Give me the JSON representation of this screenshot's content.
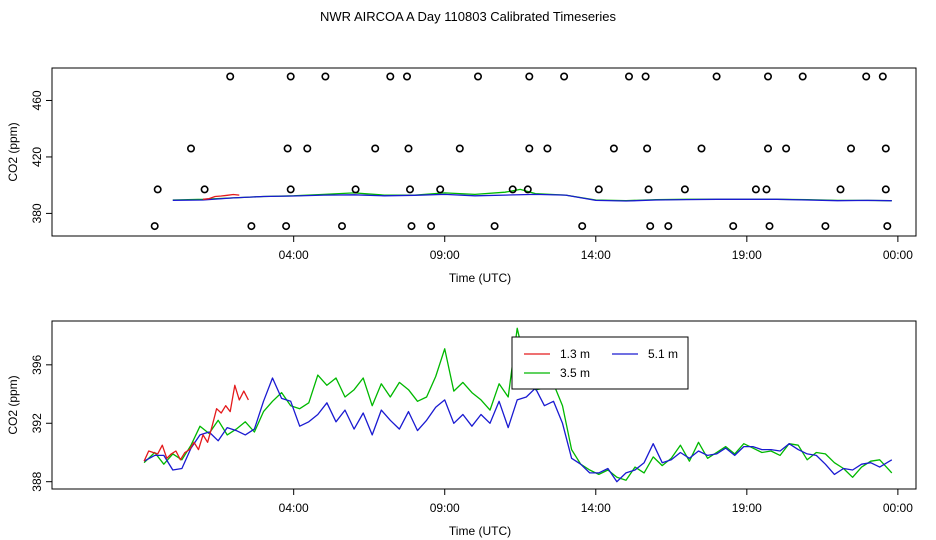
{
  "title": "NWR AIRCOA A  Day 110803  Calibrated Timeseries",
  "chart_data": [
    {
      "type": "scatter",
      "panel": "top",
      "xlabel": "Time (UTC)",
      "ylabel": "CO2 (ppm)",
      "x_unit": "hours since 00:00 UTC",
      "xlim": [
        -4.0,
        24.6
      ],
      "ylim": [
        364,
        483
      ],
      "x_ticks": [
        {
          "value": 4,
          "label": "04:00"
        },
        {
          "value": 9,
          "label": "09:00"
        },
        {
          "value": 14,
          "label": "14:00"
        },
        {
          "value": 19,
          "label": "19:00"
        },
        {
          "value": 24,
          "label": "00:00"
        }
      ],
      "y_ticks": [
        {
          "value": 380,
          "label": "380"
        },
        {
          "value": 420,
          "label": "420"
        },
        {
          "value": 460,
          "label": "460"
        }
      ],
      "legend": "none",
      "calibration_points": {
        "name": "",
        "marker": "open circle",
        "color": "#000000",
        "x": [
          1.9,
          3.9,
          5.05,
          7.2,
          7.75,
          10.1,
          11.8,
          12.95,
          15.1,
          15.65,
          18.0,
          19.7,
          20.85,
          22.95,
          23.5,
          0.6,
          3.8,
          4.45,
          6.7,
          7.8,
          9.5,
          11.8,
          12.4,
          14.6,
          15.7,
          17.5,
          19.7,
          20.3,
          22.45,
          23.6,
          -0.5,
          1.05,
          3.9,
          6.05,
          7.85,
          8.85,
          11.25,
          11.75,
          14.1,
          15.75,
          16.95,
          19.3,
          19.65,
          22.1,
          23.6,
          -0.6,
          2.6,
          3.75,
          5.6,
          7.9,
          8.55,
          10.65,
          13.55,
          15.8,
          16.4,
          18.55,
          19.75,
          21.6,
          23.65
        ],
        "y": [
          477,
          477,
          477,
          477,
          477,
          477,
          477,
          477,
          477,
          477,
          477,
          477,
          477,
          477,
          477,
          426,
          426,
          426,
          426,
          426,
          426,
          426,
          426,
          426,
          426,
          426,
          426,
          426,
          426,
          426,
          397,
          397,
          397,
          397,
          397,
          397,
          397,
          397,
          397,
          397,
          397,
          397,
          397,
          397,
          397,
          371,
          371,
          371,
          371,
          371,
          371,
          371,
          371,
          371,
          371,
          371,
          371,
          371,
          371
        ]
      },
      "series": [
        {
          "name": "1.3 m",
          "color": "#e41a1c",
          "x": [
            1.0,
            1.2,
            1.4,
            1.6,
            1.8,
            2.0,
            2.2
          ],
          "y": [
            390.0,
            390.5,
            392.0,
            392.3,
            392.8,
            393.4,
            393.0
          ]
        },
        {
          "name": "3.5 m",
          "color": "#00b800",
          "x": [
            0.0,
            1.0,
            2.0,
            3.0,
            4.0,
            5.0,
            6.0,
            7.0,
            8.0,
            9.0,
            10.0,
            11.0,
            11.5,
            12.0,
            13.0,
            14.0,
            15.0,
            16.0,
            17.0,
            18.0,
            19.0,
            20.0,
            21.0,
            22.0,
            23.0,
            23.8
          ],
          "y": [
            389.5,
            390.0,
            391.0,
            392.0,
            392.5,
            393.5,
            394.5,
            393.0,
            393.0,
            394.5,
            393.5,
            395.0,
            397.0,
            394.0,
            393.0,
            389.5,
            389.0,
            389.8,
            390.0,
            390.0,
            390.0,
            390.0,
            389.8,
            389.2,
            389.2,
            389.0
          ]
        },
        {
          "name": "5.1 m",
          "color": "#1a1ad1",
          "x": [
            0.0,
            1.0,
            2.0,
            3.0,
            4.0,
            5.0,
            6.0,
            7.0,
            8.0,
            9.0,
            10.0,
            11.0,
            12.0,
            13.0,
            14.0,
            15.0,
            16.0,
            17.0,
            18.0,
            19.0,
            20.0,
            21.0,
            22.0,
            23.0,
            23.8
          ],
          "y": [
            389.3,
            389.5,
            391.0,
            392.0,
            392.3,
            393.0,
            393.2,
            392.5,
            392.8,
            393.5,
            392.5,
            393.0,
            393.5,
            393.0,
            389.2,
            388.8,
            389.5,
            389.8,
            390.0,
            390.0,
            390.0,
            389.5,
            389.0,
            389.2,
            389.0
          ]
        }
      ]
    },
    {
      "type": "line",
      "panel": "bottom",
      "xlabel": "Time (UTC)",
      "ylabel": "CO2 (ppm)",
      "x_unit": "hours since 00:00 UTC",
      "xlim": [
        -4.0,
        24.6
      ],
      "ylim": [
        387.5,
        399.0
      ],
      "x_ticks": [
        {
          "value": 4,
          "label": "04:00"
        },
        {
          "value": 9,
          "label": "09:00"
        },
        {
          "value": 14,
          "label": "14:00"
        },
        {
          "value": 19,
          "label": "19:00"
        },
        {
          "value": 24,
          "label": "00:00"
        }
      ],
      "y_ticks": [
        {
          "value": 388,
          "label": "388"
        },
        {
          "value": 392,
          "label": "392"
        },
        {
          "value": 396,
          "label": "396"
        }
      ],
      "legend": "top-center",
      "series": [
        {
          "name": "1.3 m",
          "color": "#e41a1c",
          "x": [
            -0.95,
            -0.8,
            -0.65,
            -0.5,
            -0.35,
            -0.2,
            -0.05,
            0.1,
            0.25,
            0.4,
            0.55,
            0.7,
            0.85,
            1.0,
            1.15,
            1.3,
            1.45,
            1.6,
            1.75,
            1.9,
            2.05,
            2.2,
            2.35,
            2.5
          ],
          "y": [
            389.4,
            390.1,
            390.0,
            389.9,
            390.5,
            389.6,
            389.9,
            390.1,
            389.5,
            390.0,
            390.2,
            390.7,
            390.2,
            391.2,
            390.7,
            391.8,
            393.0,
            392.7,
            393.2,
            392.8,
            394.6,
            393.6,
            394.2,
            393.6
          ]
        },
        {
          "name": "3.5 m",
          "color": "#00b800",
          "x": [
            -0.95,
            -0.6,
            -0.3,
            0.0,
            0.3,
            0.6,
            0.9,
            1.2,
            1.5,
            1.8,
            2.1,
            2.4,
            2.7,
            3.0,
            3.3,
            3.6,
            3.9,
            4.2,
            4.5,
            4.8,
            5.1,
            5.4,
            5.7,
            6.0,
            6.3,
            6.6,
            6.9,
            7.2,
            7.5,
            7.8,
            8.1,
            8.4,
            8.7,
            9.0,
            9.3,
            9.6,
            9.9,
            10.2,
            10.5,
            10.8,
            11.1,
            11.4,
            11.7,
            12.0,
            12.3,
            12.6,
            12.9,
            13.2,
            13.5,
            13.8,
            14.1,
            14.4,
            14.7,
            15.0,
            15.3,
            15.6,
            15.9,
            16.2,
            16.5,
            16.8,
            17.1,
            17.4,
            17.7,
            18.0,
            18.3,
            18.6,
            18.9,
            19.2,
            19.5,
            19.8,
            20.1,
            20.4,
            20.7,
            21.0,
            21.3,
            21.6,
            21.9,
            22.2,
            22.5,
            22.8,
            23.1,
            23.4,
            23.8
          ],
          "y": [
            389.3,
            390.0,
            389.2,
            389.9,
            389.5,
            390.5,
            391.8,
            391.3,
            392.2,
            391.2,
            391.6,
            392.1,
            391.4,
            392.8,
            393.5,
            394.1,
            393.2,
            393.0,
            393.4,
            395.3,
            394.6,
            395.1,
            393.8,
            394.3,
            395.1,
            393.2,
            394.7,
            393.8,
            394.8,
            394.3,
            393.5,
            393.8,
            395.2,
            397.1,
            394.2,
            394.8,
            394.1,
            393.6,
            392.9,
            394.7,
            393.8,
            398.5,
            395.8,
            394.3,
            394.4,
            394.7,
            393.2,
            390.2,
            389.2,
            388.8,
            388.5,
            388.8,
            388.3,
            388.1,
            389.0,
            388.6,
            389.7,
            389.1,
            389.6,
            390.5,
            389.4,
            390.7,
            389.6,
            390.0,
            390.4,
            389.9,
            390.6,
            390.3,
            390.0,
            390.1,
            389.8,
            390.6,
            390.5,
            389.5,
            390.0,
            389.9,
            389.3,
            388.9,
            388.3,
            389.0,
            389.4,
            389.5,
            388.6
          ]
        },
        {
          "name": "5.1 m",
          "color": "#1a1ad1",
          "x": [
            -0.95,
            -0.6,
            -0.3,
            0.0,
            0.3,
            0.6,
            0.9,
            1.2,
            1.5,
            1.8,
            2.1,
            2.4,
            2.7,
            3.0,
            3.3,
            3.6,
            3.9,
            4.2,
            4.5,
            4.8,
            5.1,
            5.4,
            5.7,
            6.0,
            6.3,
            6.6,
            6.9,
            7.2,
            7.5,
            7.8,
            8.1,
            8.4,
            8.7,
            9.0,
            9.3,
            9.6,
            9.9,
            10.2,
            10.5,
            10.8,
            11.1,
            11.4,
            11.7,
            12.0,
            12.3,
            12.6,
            12.9,
            13.2,
            13.5,
            13.8,
            14.1,
            14.4,
            14.7,
            15.0,
            15.3,
            15.6,
            15.9,
            16.2,
            16.5,
            16.8,
            17.1,
            17.4,
            17.7,
            18.0,
            18.3,
            18.6,
            18.9,
            19.2,
            19.5,
            19.8,
            20.1,
            20.4,
            20.7,
            21.0,
            21.3,
            21.6,
            21.9,
            22.2,
            22.5,
            22.8,
            23.1,
            23.4,
            23.8
          ],
          "y": [
            389.4,
            389.8,
            389.8,
            388.8,
            388.9,
            390.3,
            391.2,
            391.4,
            390.8,
            391.7,
            391.5,
            391.2,
            391.6,
            393.5,
            395.1,
            393.7,
            393.5,
            391.8,
            392.1,
            392.6,
            393.4,
            392.1,
            392.9,
            391.6,
            392.7,
            391.2,
            392.9,
            392.2,
            391.6,
            392.8,
            391.5,
            392.2,
            393.1,
            393.6,
            392.0,
            392.6,
            391.8,
            392.6,
            392.0,
            393.5,
            391.7,
            393.6,
            393.8,
            394.4,
            393.2,
            393.5,
            392.0,
            389.6,
            389.2,
            388.6,
            388.6,
            388.9,
            388.0,
            388.6,
            388.8,
            389.3,
            390.6,
            389.3,
            389.5,
            390.0,
            389.6,
            390.1,
            389.8,
            389.9,
            390.3,
            389.8,
            390.4,
            390.4,
            390.2,
            390.2,
            390.1,
            390.6,
            390.2,
            389.9,
            389.8,
            389.2,
            388.5,
            388.9,
            388.8,
            389.2,
            389.3,
            389.0,
            389.5
          ]
        }
      ]
    }
  ]
}
